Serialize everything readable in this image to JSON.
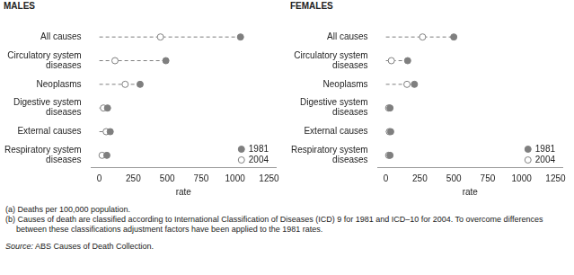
{
  "chart_data": [
    {
      "type": "dot",
      "title": "MALES",
      "x_label": "rate",
      "orientation": "horizontal",
      "categories": [
        "All causes",
        "Circulatory system diseases",
        "Neoplasms",
        "Digestive system diseases",
        "External causes",
        "Respiratory system diseases"
      ],
      "series": [
        {
          "name": "1981",
          "color": "#7f7f7f",
          "marker": "circle",
          "values": [
            1040,
            490,
            300,
            60,
            80,
            55
          ]
        },
        {
          "name": "2004",
          "color": "#7f7f7f",
          "marker": "circle-open",
          "values": [
            450,
            115,
            190,
            30,
            50,
            20
          ]
        }
      ],
      "xlim": [
        -60,
        1300
      ],
      "xticks": [
        0,
        250,
        500,
        750,
        1000,
        1250
      ],
      "grid": false,
      "legend": "lower right",
      "line_style": "dashed"
    },
    {
      "type": "dot",
      "title": "FEMALES",
      "x_label": "rate",
      "orientation": "horizontal",
      "categories": [
        "All causes",
        "Circulatory system diseases",
        "Neoplasms",
        "Digestive system diseases",
        "External causes",
        "Respiratory system diseases"
      ],
      "series": [
        {
          "name": "1981",
          "color": "#7f7f7f",
          "marker": "circle",
          "values": [
            500,
            160,
            210,
            30,
            35,
            30
          ]
        },
        {
          "name": "2004",
          "color": "#7f7f7f",
          "marker": "circle-open",
          "values": [
            270,
            40,
            155,
            20,
            25,
            20
          ]
        }
      ],
      "xlim": [
        -60,
        1300
      ],
      "xticks": [
        0,
        250,
        500,
        750,
        1000,
        1250
      ],
      "grid": false,
      "legend": "lower right",
      "line_style": "dashed"
    }
  ],
  "notes": [
    "(a) Deaths per 100,000 population.",
    "(b) Causes of death are classified according to International Classification of Diseases (ICD) 9 for 1981 and ICD–10 for 2004. To overcome differences between these classifications adjustment factors have been applied to the 1981 rates."
  ],
  "source": "Source: ABS Causes of Death Collection."
}
